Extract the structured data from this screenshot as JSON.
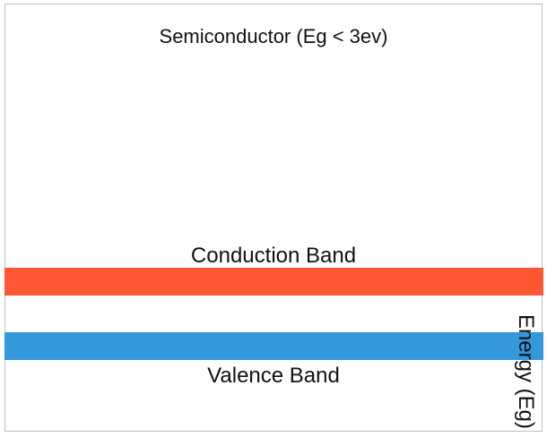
{
  "diagram": {
    "title": "Semiconductor (Eg < 3ev)",
    "axis_label": "Energy (Eg)",
    "bands": [
      {
        "label": "Conduction Band",
        "color": "#ff5733"
      },
      {
        "label": "Valence Band",
        "color": "#3498db"
      }
    ]
  }
}
